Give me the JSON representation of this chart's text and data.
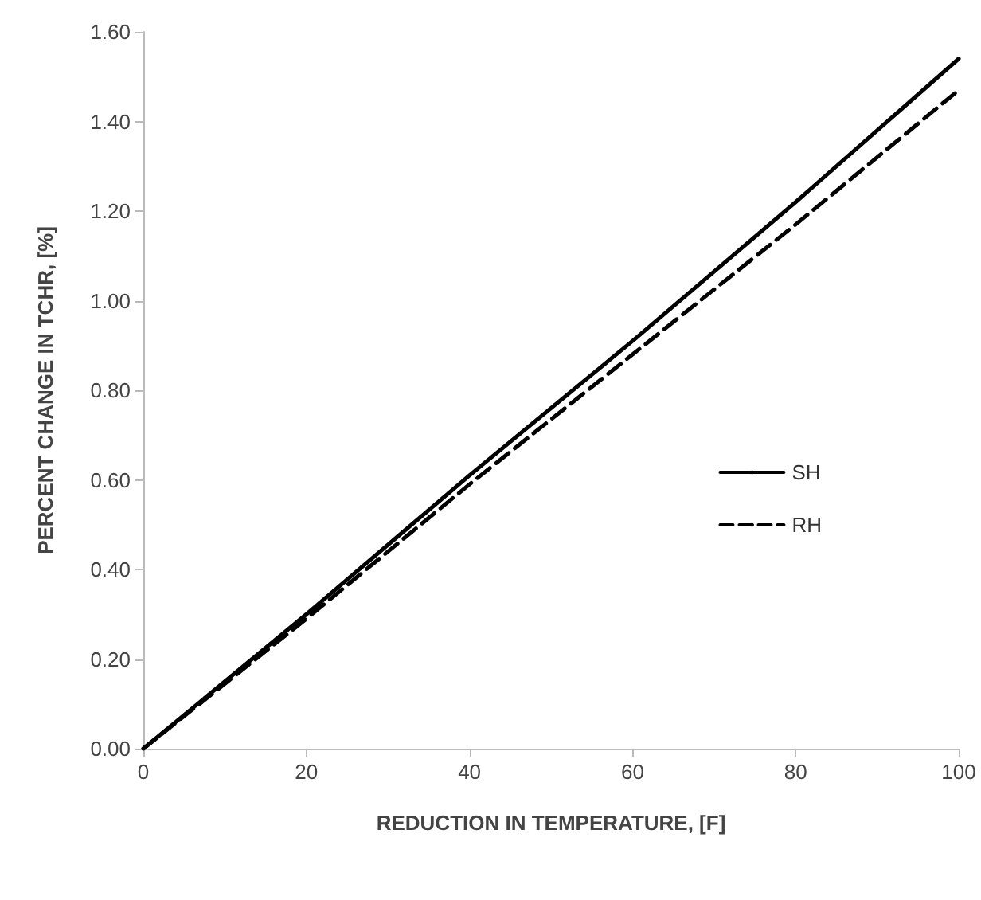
{
  "chart_data": {
    "type": "line",
    "xlabel": "REDUCTION IN TEMPERATURE, [F]",
    "ylabel": "PERCENT CHANGE IN TCHR, [%]",
    "x": [
      0,
      20,
      40,
      60,
      80,
      100
    ],
    "series": [
      {
        "name": "SH",
        "color": "#000000",
        "values": [
          0,
          0.3,
          0.61,
          0.91,
          1.22,
          1.54
        ],
        "line_style": "solid"
      },
      {
        "name": "RH",
        "color": "#000000",
        "values": [
          0,
          0.29,
          0.59,
          0.88,
          1.17,
          1.47
        ],
        "line_style": "dashed"
      }
    ],
    "xlim": [
      0,
      100
    ],
    "xticks": [
      0,
      20,
      40,
      60,
      80,
      100
    ],
    "ylim": [
      0,
      1.6
    ],
    "yticks": [
      {
        "value": 0,
        "label": "0.00"
      },
      {
        "value": 0.2,
        "label": "0.20"
      },
      {
        "value": 0.4,
        "label": "0.40"
      },
      {
        "value": 0.6,
        "label": "0.60"
      },
      {
        "value": 0.8,
        "label": "0.80"
      },
      {
        "value": 1,
        "label": "1.00"
      },
      {
        "value": 1.2,
        "label": "1.20"
      },
      {
        "value": 1.4,
        "label": "1.40"
      },
      {
        "value": 1.6,
        "label": "1.60"
      }
    ],
    "grid": false,
    "legend": "right",
    "marker": "none"
  }
}
